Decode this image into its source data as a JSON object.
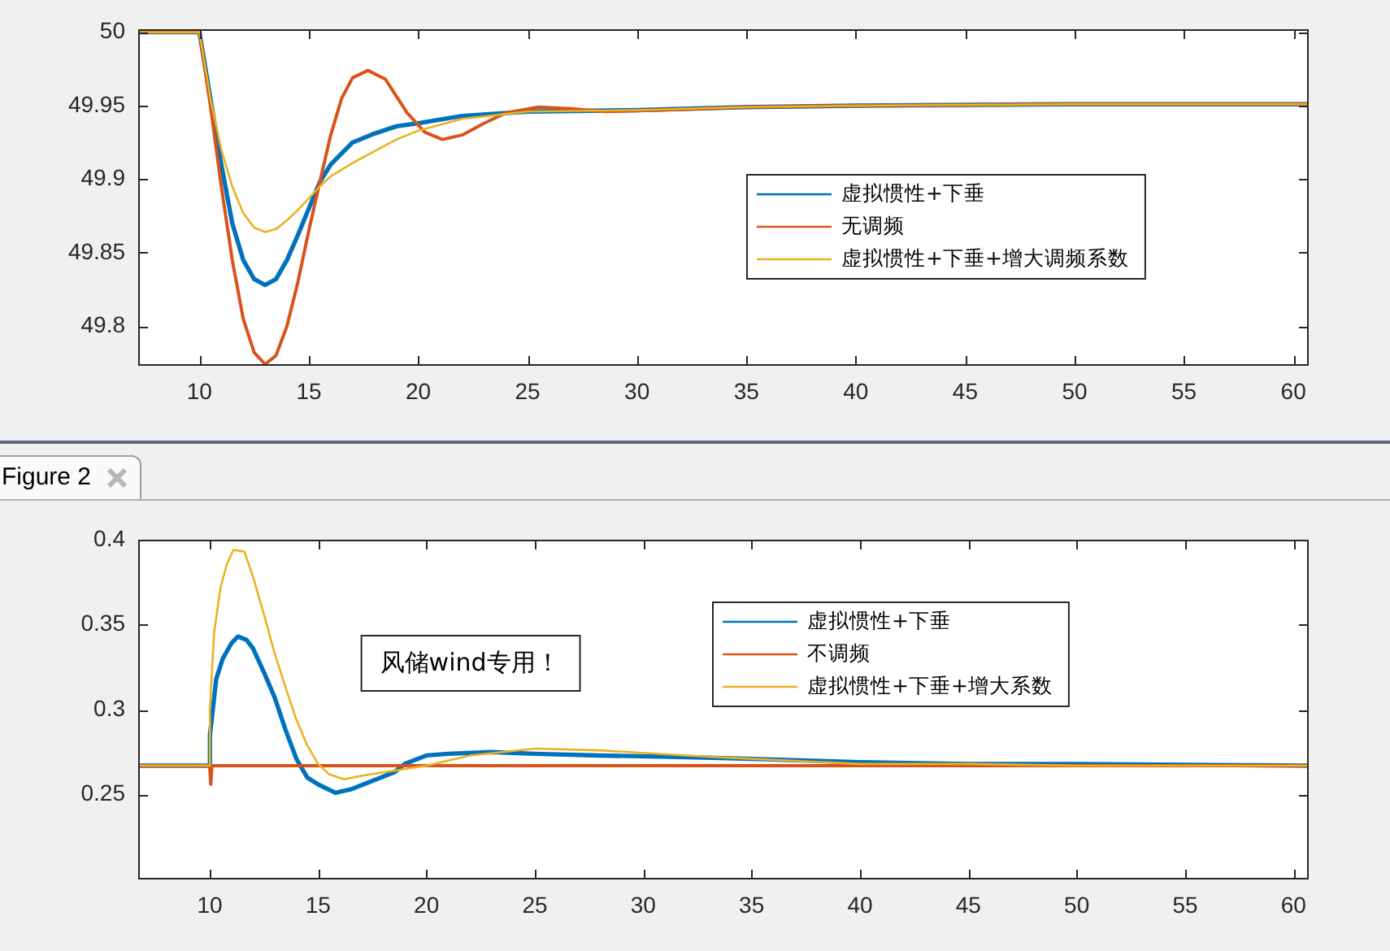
{
  "chart_data": [
    {
      "type": "line",
      "xlim": [
        7.2,
        60.7
      ],
      "ylim": [
        49.773,
        50.002
      ],
      "xticks": [
        10,
        15,
        20,
        25,
        30,
        35,
        40,
        45,
        50,
        55,
        60
      ],
      "yticks": [
        49.8,
        49.85,
        49.9,
        49.95,
        50
      ],
      "grid": false,
      "legend": "right",
      "line_style": "solid",
      "marker": "none",
      "series": [
        {
          "name": "虚拟惯性+下垂",
          "color": "#0072bd",
          "x": [
            7.2,
            10,
            10.5,
            11,
            11.5,
            12,
            12.5,
            13,
            13.5,
            14,
            14.5,
            15,
            15.5,
            16,
            17,
            18,
            19,
            20,
            22,
            25,
            30,
            35,
            40,
            50,
            60.7
          ],
          "values": [
            50,
            50,
            49.955,
            49.91,
            49.87,
            49.845,
            49.832,
            49.828,
            49.832,
            49.845,
            49.862,
            49.88,
            49.898,
            49.91,
            49.925,
            49.931,
            49.936,
            49.938,
            49.943,
            49.946,
            49.947,
            49.949,
            49.95,
            49.951,
            49.951
          ]
        },
        {
          "name": "无调频",
          "color": "#d95319",
          "x": [
            7.2,
            10,
            10.5,
            11,
            11.5,
            12,
            12.5,
            13,
            13.5,
            14,
            14.5,
            15,
            15.5,
            16,
            16.5,
            17,
            17.7,
            18.5,
            19.5,
            20.3,
            21.1,
            22,
            23,
            24,
            25.5,
            27,
            28.5,
            31,
            35,
            40,
            50,
            60.7
          ],
          "values": [
            50,
            50,
            49.95,
            49.895,
            49.845,
            49.805,
            49.782,
            49.774,
            49.78,
            49.8,
            49.83,
            49.865,
            49.898,
            49.93,
            49.955,
            49.969,
            49.974,
            49.968,
            49.945,
            49.932,
            49.927,
            49.93,
            49.938,
            49.945,
            49.949,
            49.948,
            49.946,
            49.947,
            49.949,
            49.95,
            49.951,
            49.951
          ]
        },
        {
          "name": "虚拟惯性+下垂+增大调频系数",
          "color": "#edb120",
          "x": [
            7.2,
            10,
            10.5,
            11,
            11.5,
            12,
            12.5,
            13,
            13.5,
            14,
            14.5,
            15,
            15.5,
            16,
            17,
            18,
            19,
            20,
            22,
            25,
            30,
            35,
            40,
            50,
            60.7
          ],
          "values": [
            50,
            50,
            49.955,
            49.92,
            49.895,
            49.877,
            49.867,
            49.864,
            49.866,
            49.872,
            49.879,
            49.887,
            49.895,
            49.902,
            49.911,
            49.919,
            49.927,
            49.933,
            49.941,
            49.946,
            49.947,
            49.949,
            49.95,
            49.951,
            49.951
          ]
        }
      ]
    },
    {
      "type": "line",
      "title": "Figure 2",
      "xlim": [
        6.7,
        60.7
      ],
      "ylim": [
        0.2,
        0.4
      ],
      "xticks": [
        10,
        15,
        20,
        25,
        30,
        35,
        40,
        45,
        50,
        55,
        60
      ],
      "yticks": [
        0.25,
        0.3,
        0.35,
        0.4
      ],
      "grid": false,
      "legend": "top right",
      "line_style": "solid",
      "marker": "none",
      "annotations": [
        "风储wind专用！"
      ],
      "series": [
        {
          "name": "虚拟惯性+下垂",
          "color": "#0072bd",
          "x": [
            6.7,
            10,
            10.01,
            10.3,
            10.6,
            11,
            11.3,
            11.7,
            12,
            12.5,
            13,
            13.5,
            14,
            14.5,
            15,
            15.8,
            16.5,
            17.5,
            18.5,
            19,
            20,
            21,
            23,
            25,
            28,
            32,
            35,
            40,
            45,
            50,
            60.7
          ],
          "values": [
            0.267,
            0.267,
            0.285,
            0.318,
            0.33,
            0.339,
            0.343,
            0.341,
            0.336,
            0.322,
            0.307,
            0.288,
            0.271,
            0.26,
            0.256,
            0.251,
            0.253,
            0.258,
            0.263,
            0.268,
            0.273,
            0.274,
            0.275,
            0.274,
            0.273,
            0.272,
            0.271,
            0.269,
            0.268,
            0.268,
            0.267
          ]
        },
        {
          "name": "不调频",
          "color": "#d95319",
          "x": [
            6.7,
            10,
            10.05,
            10.1,
            60.7
          ],
          "values": [
            0.267,
            0.267,
            0.256,
            0.267,
            0.267
          ]
        },
        {
          "name": "虚拟惯性+下垂+增大系数",
          "color": "#edb120",
          "x": [
            6.7,
            10,
            10.01,
            10.2,
            10.5,
            10.8,
            11.1,
            11.6,
            12,
            12.5,
            13,
            13.5,
            14,
            14.5,
            15,
            15.5,
            16.2,
            17,
            18,
            19,
            20,
            22,
            25,
            28,
            32,
            35,
            40,
            45,
            50,
            60.7
          ],
          "values": [
            0.267,
            0.267,
            0.3,
            0.345,
            0.372,
            0.386,
            0.394,
            0.393,
            0.378,
            0.356,
            0.333,
            0.313,
            0.294,
            0.279,
            0.268,
            0.262,
            0.259,
            0.261,
            0.263,
            0.265,
            0.267,
            0.273,
            0.277,
            0.276,
            0.273,
            0.271,
            0.268,
            0.268,
            0.267,
            0.267
          ]
        }
      ]
    }
  ]
}
